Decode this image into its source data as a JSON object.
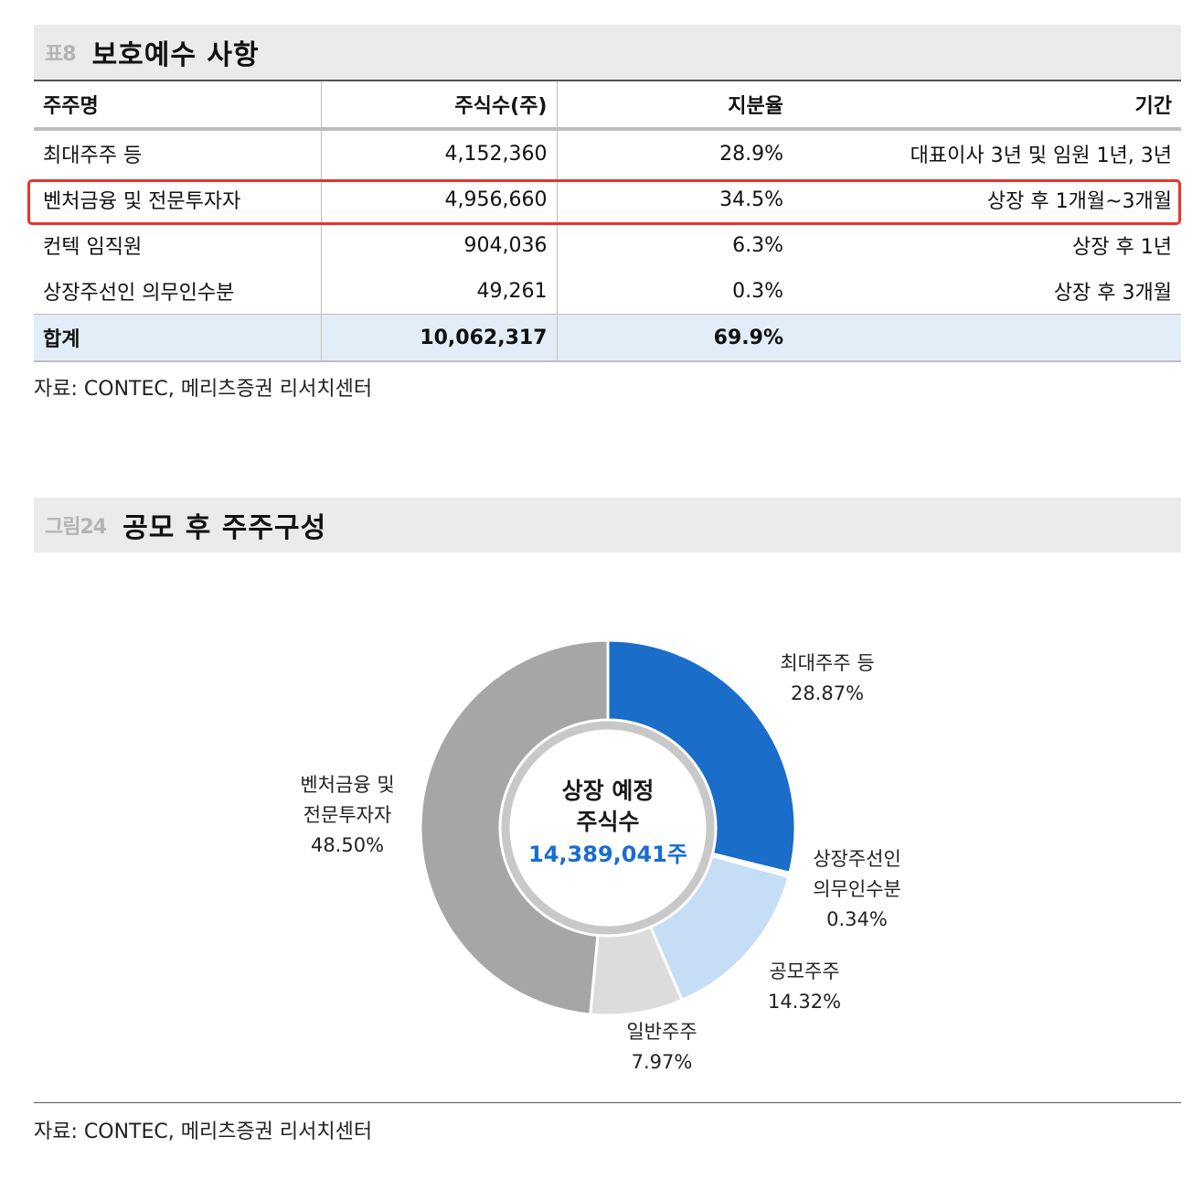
{
  "table_section": {
    "tag": "표8",
    "title": "보호예수 사항",
    "columns": [
      "주주명",
      "주식수(주)",
      "지분율",
      "기간"
    ],
    "rows": [
      {
        "name": "최대주주 등",
        "shares": "4,152,360",
        "ratio": "28.9%",
        "period": "대표이사 3년 및 임원 1년, 3년"
      },
      {
        "name": "벤처금융 및 전문투자자",
        "shares": "4,956,660",
        "ratio": "34.5%",
        "period": "상장 후 1개월~3개월"
      },
      {
        "name": "컨텍 임직원",
        "shares": "904,036",
        "ratio": "6.3%",
        "period": "상장 후 1년"
      },
      {
        "name": "상장주선인 의무인수분",
        "shares": "49,261",
        "ratio": "0.3%",
        "period": "상장 후 3개월"
      }
    ],
    "total": {
      "name": "합계",
      "shares": "10,062,317",
      "ratio": "69.9%",
      "period": ""
    },
    "source": "자료: CONTEC, 메리츠증권 리서치센터"
  },
  "chart_section": {
    "tag": "그림24",
    "title": "공모 후 주주구성",
    "source": "자료: CONTEC, 메리츠증권 리서치센터"
  },
  "chart_data": {
    "type": "pie",
    "variant": "donut",
    "center_text": [
      "상장 예정",
      "주식수"
    ],
    "center_value": "14,389,041주",
    "slices": [
      {
        "label": "최대주주 등",
        "value": 28.87,
        "display": "28.87%",
        "color": "#1a6dc8"
      },
      {
        "label": "상장주선인 의무인수분",
        "value": 0.34,
        "display": "0.34%",
        "color": "#e9eff8"
      },
      {
        "label": "공모주주",
        "value": 14.32,
        "display": "14.32%",
        "color": "#c6ddf6"
      },
      {
        "label": "일반주주",
        "value": 7.97,
        "display": "7.97%",
        "color": "#dcdcdc"
      },
      {
        "label": "벤처금융 및 전문투자자",
        "value": 48.5,
        "display": "48.50%",
        "color": "#a6a6a6"
      }
    ],
    "labels_text": {
      "s0": [
        "최대주주 등",
        "28.87%"
      ],
      "s1": [
        "상장주선인",
        "의무인수분",
        "0.34%"
      ],
      "s2": [
        "공모주주",
        "14.32%"
      ],
      "s3": [
        "일반주주",
        "7.97%"
      ],
      "s4": [
        "벤처금융 및",
        "전문투자자",
        "48.50%"
      ]
    },
    "colors": {
      "center_value": "#1a6dd1"
    }
  }
}
